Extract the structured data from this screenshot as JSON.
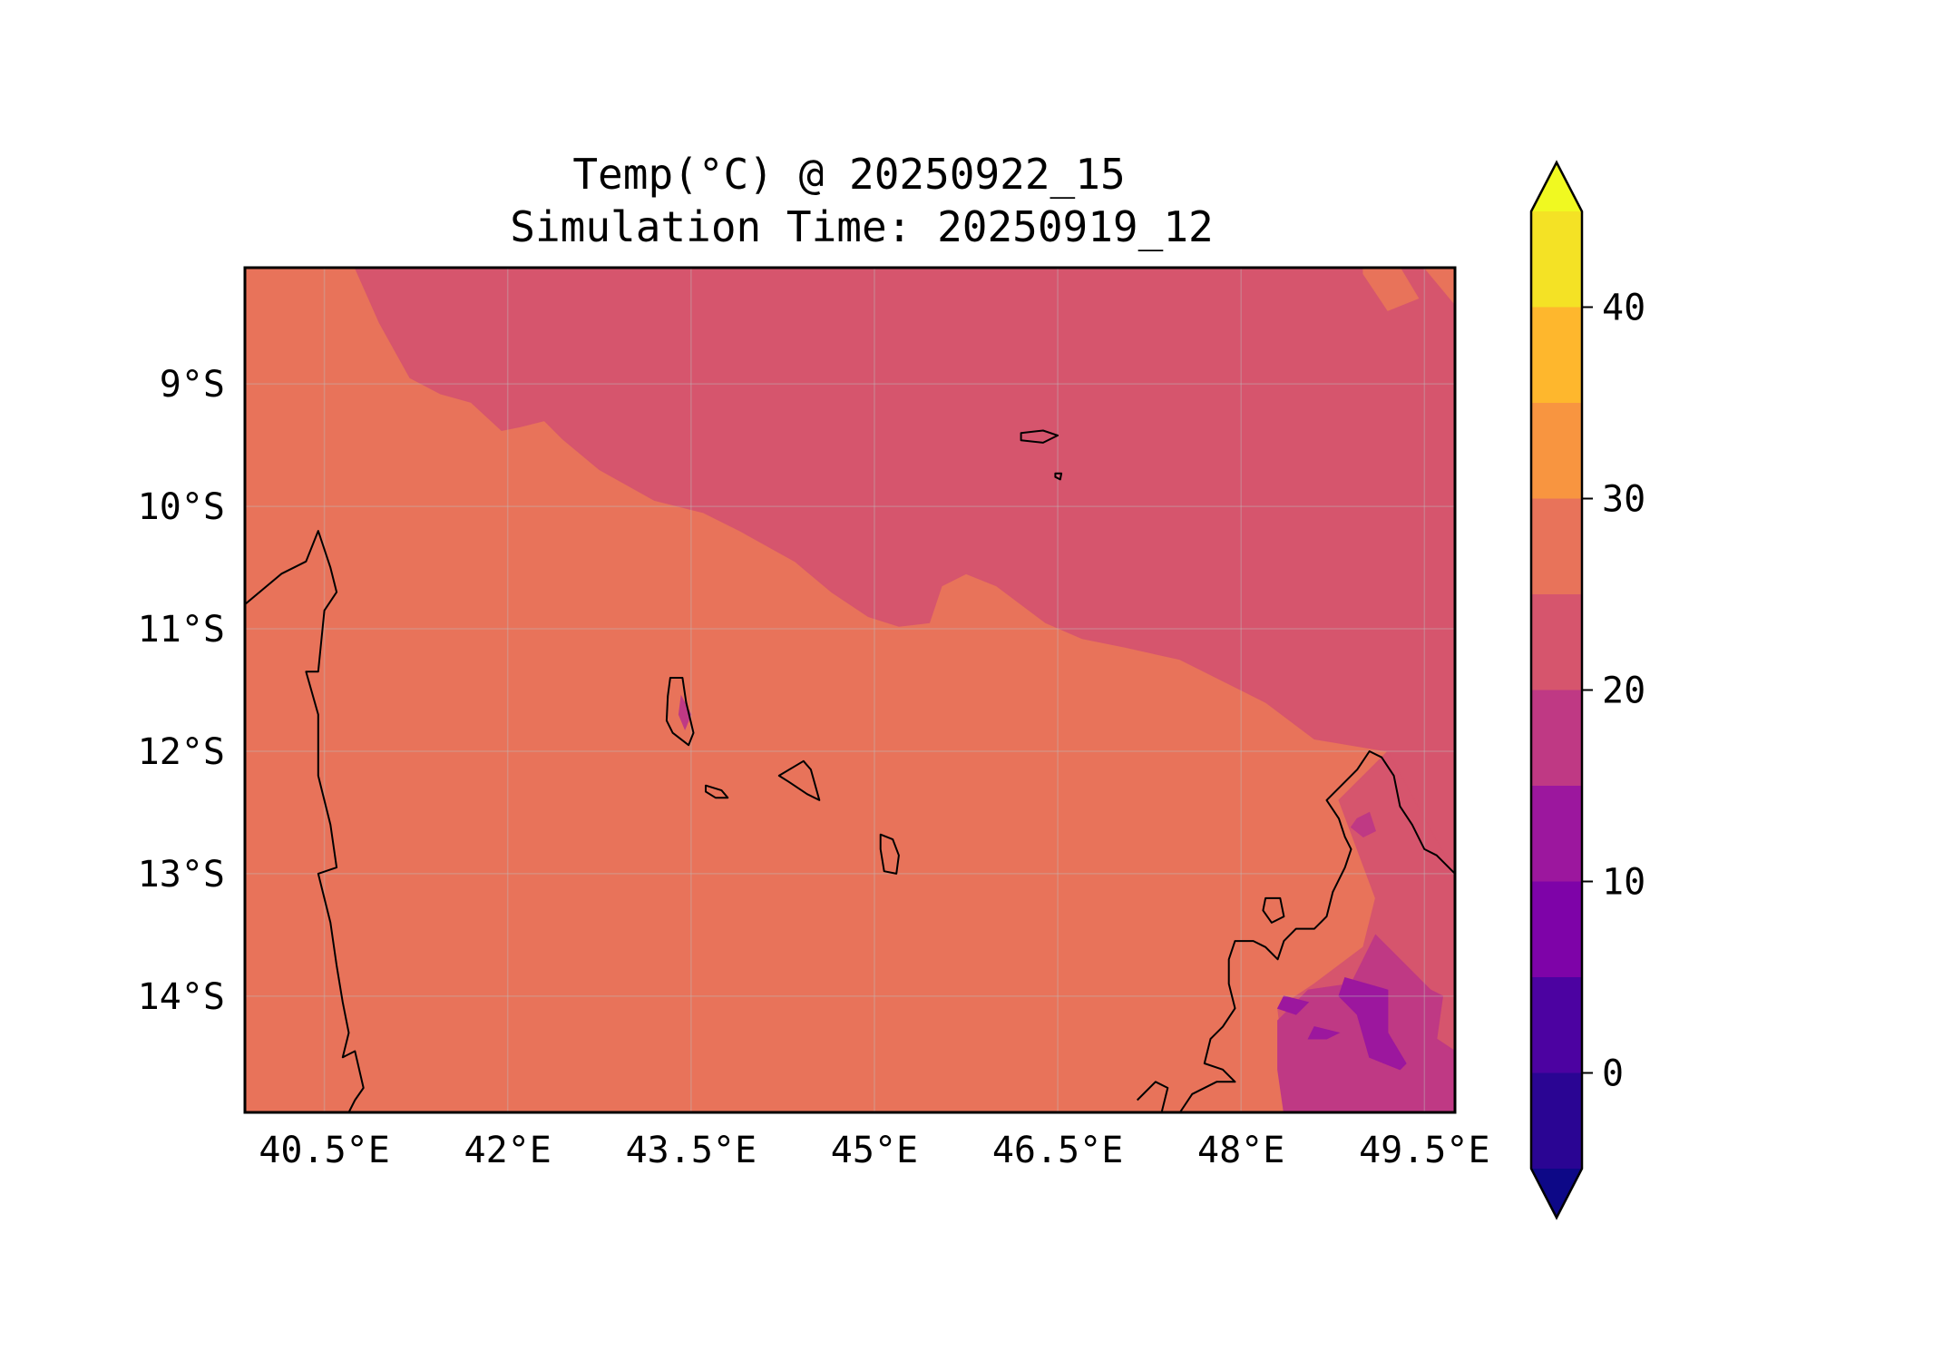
{
  "title_line1": "Temp(°C) @ 20250922_15",
  "title_line2": "Simulation Time: 20250919_12",
  "map": {
    "lon_range": [
      39.85,
      49.75
    ],
    "lat_range": [
      -14.95,
      -8.05
    ],
    "xticks": [
      {
        "value": 40.5,
        "label": "40.5°E"
      },
      {
        "value": 42.0,
        "label": "42°E"
      },
      {
        "value": 43.5,
        "label": "43.5°E"
      },
      {
        "value": 45.0,
        "label": "45°E"
      },
      {
        "value": 46.5,
        "label": "46.5°E"
      },
      {
        "value": 48.0,
        "label": "48°E"
      },
      {
        "value": 49.5,
        "label": "49.5°E"
      }
    ],
    "yticks": [
      {
        "value": -9,
        "label": "9°S"
      },
      {
        "value": -10,
        "label": "10°S"
      },
      {
        "value": -11,
        "label": "11°S"
      },
      {
        "value": -12,
        "label": "12°S"
      },
      {
        "value": -13,
        "label": "13°S"
      },
      {
        "value": -14,
        "label": "14°S"
      }
    ],
    "grid": true,
    "background_level_color": "#e8735a",
    "regions": [
      {
        "name": "ocean-cool-20-25",
        "color": "#d6556d",
        "points": [
          [
            40.75,
            -8.05
          ],
          [
            49.75,
            -8.05
          ],
          [
            49.75,
            -13.0
          ],
          [
            49.3,
            -12.6
          ],
          [
            49.2,
            -12.0
          ],
          [
            48.6,
            -11.9
          ],
          [
            48.2,
            -11.6
          ],
          [
            47.9,
            -11.45
          ],
          [
            47.5,
            -11.25
          ],
          [
            47.05,
            -11.15
          ],
          [
            46.7,
            -11.08
          ],
          [
            46.4,
            -10.95
          ],
          [
            46.0,
            -10.65
          ],
          [
            45.75,
            -10.55
          ],
          [
            45.55,
            -10.65
          ],
          [
            45.45,
            -10.95
          ],
          [
            45.2,
            -10.98
          ],
          [
            44.95,
            -10.9
          ],
          [
            44.65,
            -10.7
          ],
          [
            44.35,
            -10.45
          ],
          [
            43.9,
            -10.2
          ],
          [
            43.6,
            -10.05
          ],
          [
            43.2,
            -9.95
          ],
          [
            42.75,
            -9.7
          ],
          [
            42.45,
            -9.45
          ],
          [
            42.3,
            -9.3
          ],
          [
            42.1,
            -9.35
          ],
          [
            41.95,
            -9.38
          ],
          [
            41.7,
            -9.15
          ],
          [
            41.45,
            -9.08
          ],
          [
            41.2,
            -8.95
          ],
          [
            40.95,
            -8.5
          ],
          [
            40.75,
            -8.05
          ]
        ]
      },
      {
        "name": "madagascar-cool-20-25",
        "color": "#d6556d",
        "points": [
          [
            49.2,
            -12.0
          ],
          [
            49.75,
            -13.0
          ],
          [
            49.75,
            -14.95
          ],
          [
            48.5,
            -14.95
          ],
          [
            48.35,
            -14.5
          ],
          [
            48.3,
            -14.1
          ],
          [
            48.6,
            -13.9
          ],
          [
            49.0,
            -13.6
          ],
          [
            49.1,
            -13.2
          ],
          [
            48.95,
            -12.8
          ],
          [
            48.8,
            -12.4
          ]
        ]
      },
      {
        "name": "madagascar-15-20",
        "color": "#bf3984",
        "points": [
          [
            48.35,
            -14.95
          ],
          [
            48.3,
            -14.6
          ],
          [
            48.3,
            -14.2
          ],
          [
            48.55,
            -13.95
          ],
          [
            48.9,
            -13.9
          ],
          [
            49.1,
            -13.5
          ],
          [
            49.3,
            -13.7
          ],
          [
            49.55,
            -13.95
          ],
          [
            49.65,
            -14.0
          ],
          [
            49.6,
            -14.35
          ],
          [
            49.75,
            -14.45
          ],
          [
            49.75,
            -14.95
          ]
        ]
      },
      {
        "name": "madagascar-10-15",
        "color": "#9c179e",
        "points": [
          [
            48.85,
            -13.85
          ],
          [
            49.2,
            -13.95
          ],
          [
            49.2,
            -14.3
          ],
          [
            49.35,
            -14.55
          ],
          [
            49.3,
            -14.6
          ],
          [
            49.05,
            -14.5
          ],
          [
            48.95,
            -14.15
          ],
          [
            48.8,
            -14.0
          ]
        ]
      },
      {
        "name": "madagascar-10-15-b",
        "color": "#9c179e",
        "points": [
          [
            48.6,
            -14.25
          ],
          [
            48.8,
            -14.3
          ],
          [
            48.7,
            -14.35
          ],
          [
            48.55,
            -14.35
          ]
        ]
      },
      {
        "name": "madagascar-10-15-c",
        "color": "#9c179e",
        "points": [
          [
            48.35,
            -14.0
          ],
          [
            48.55,
            -14.05
          ],
          [
            48.45,
            -14.15
          ],
          [
            48.3,
            -14.1
          ]
        ]
      },
      {
        "name": "madagascar-north-15-20",
        "color": "#bf3984",
        "points": [
          [
            48.95,
            -12.55
          ],
          [
            49.05,
            -12.5
          ],
          [
            49.1,
            -12.65
          ],
          [
            49.0,
            -12.7
          ],
          [
            48.9,
            -12.62
          ]
        ]
      },
      {
        "name": "seychelles-warm-25-30",
        "color": "#e8735a",
        "points": [
          [
            49.0,
            -8.05
          ],
          [
            49.3,
            -8.05
          ],
          [
            49.45,
            -8.3
          ],
          [
            49.2,
            -8.4
          ],
          [
            49.0,
            -8.1
          ]
        ]
      },
      {
        "name": "seychelles-warm-25-30-b",
        "color": "#e8735a",
        "points": [
          [
            49.5,
            -8.05
          ],
          [
            49.75,
            -8.05
          ],
          [
            49.75,
            -8.35
          ]
        ]
      },
      {
        "name": "grande-comore-15-20",
        "color": "#bf3984",
        "points": [
          [
            43.42,
            -11.55
          ],
          [
            43.5,
            -11.7
          ],
          [
            43.45,
            -11.82
          ],
          [
            43.4,
            -11.7
          ]
        ]
      }
    ],
    "land_outlines": [
      {
        "name": "african-coast",
        "points": [
          [
            39.85,
            -10.8
          ],
          [
            40.15,
            -10.55
          ],
          [
            40.35,
            -10.45
          ],
          [
            40.45,
            -10.2
          ],
          [
            40.55,
            -10.5
          ],
          [
            40.6,
            -10.7
          ],
          [
            40.5,
            -10.85
          ],
          [
            40.45,
            -11.35
          ],
          [
            40.35,
            -11.35
          ],
          [
            40.45,
            -11.7
          ],
          [
            40.45,
            -12.2
          ],
          [
            40.55,
            -12.6
          ],
          [
            40.6,
            -12.95
          ],
          [
            40.45,
            -13.0
          ],
          [
            40.55,
            -13.4
          ],
          [
            40.6,
            -13.75
          ],
          [
            40.65,
            -14.05
          ],
          [
            40.7,
            -14.3
          ],
          [
            40.65,
            -14.5
          ],
          [
            40.75,
            -14.45
          ],
          [
            40.82,
            -14.75
          ],
          [
            40.75,
            -14.85
          ],
          [
            40.7,
            -14.95
          ]
        ]
      },
      {
        "name": "grande-comore-outline",
        "closed": true,
        "points": [
          [
            43.33,
            -11.4
          ],
          [
            43.43,
            -11.4
          ],
          [
            43.46,
            -11.6
          ],
          [
            43.52,
            -11.85
          ],
          [
            43.48,
            -11.95
          ],
          [
            43.35,
            -11.85
          ],
          [
            43.3,
            -11.75
          ],
          [
            43.31,
            -11.55
          ]
        ]
      },
      {
        "name": "moheli-outline",
        "closed": true,
        "points": [
          [
            43.62,
            -12.28
          ],
          [
            43.75,
            -12.32
          ],
          [
            43.8,
            -12.38
          ],
          [
            43.7,
            -12.38
          ],
          [
            43.62,
            -12.33
          ]
        ]
      },
      {
        "name": "anjouan-outline",
        "closed": true,
        "points": [
          [
            44.22,
            -12.2
          ],
          [
            44.42,
            -12.08
          ],
          [
            44.48,
            -12.15
          ],
          [
            44.55,
            -12.4
          ],
          [
            44.45,
            -12.35
          ],
          [
            44.3,
            -12.25
          ]
        ]
      },
      {
        "name": "mayotte-outline",
        "closed": true,
        "points": [
          [
            45.05,
            -12.68
          ],
          [
            45.15,
            -12.72
          ],
          [
            45.2,
            -12.85
          ],
          [
            45.18,
            -13.0
          ],
          [
            45.08,
            -12.98
          ],
          [
            45.05,
            -12.8
          ]
        ]
      },
      {
        "name": "aldabra-outline",
        "closed": true,
        "points": [
          [
            46.2,
            -9.4
          ],
          [
            46.38,
            -9.38
          ],
          [
            46.5,
            -9.42
          ],
          [
            46.38,
            -9.48
          ],
          [
            46.2,
            -9.46
          ]
        ]
      },
      {
        "name": "assumption-outline",
        "closed": true,
        "points": [
          [
            46.48,
            -9.73
          ],
          [
            46.53,
            -9.73
          ],
          [
            46.52,
            -9.78
          ],
          [
            46.48,
            -9.76
          ]
        ]
      },
      {
        "name": "madagascar-north-outline",
        "points": [
          [
            49.75,
            -13.0
          ],
          [
            49.6,
            -12.85
          ],
          [
            49.5,
            -12.8
          ],
          [
            49.4,
            -12.6
          ],
          [
            49.3,
            -12.45
          ],
          [
            49.25,
            -12.2
          ],
          [
            49.15,
            -12.05
          ],
          [
            49.05,
            -12.0
          ],
          [
            48.95,
            -12.15
          ],
          [
            48.8,
            -12.3
          ],
          [
            48.7,
            -12.4
          ],
          [
            48.8,
            -12.55
          ],
          [
            48.85,
            -12.7
          ],
          [
            48.9,
            -12.8
          ],
          [
            48.85,
            -12.95
          ],
          [
            48.75,
            -13.15
          ],
          [
            48.7,
            -13.35
          ],
          [
            48.6,
            -13.45
          ],
          [
            48.45,
            -13.45
          ],
          [
            48.35,
            -13.55
          ],
          [
            48.3,
            -13.7
          ],
          [
            48.2,
            -13.6
          ],
          [
            48.1,
            -13.55
          ],
          [
            47.95,
            -13.55
          ],
          [
            47.9,
            -13.7
          ],
          [
            47.9,
            -13.9
          ],
          [
            47.95,
            -14.1
          ],
          [
            47.85,
            -14.25
          ],
          [
            47.75,
            -14.35
          ],
          [
            47.7,
            -14.55
          ],
          [
            47.85,
            -14.6
          ],
          [
            47.95,
            -14.7
          ],
          [
            47.8,
            -14.7
          ],
          [
            47.6,
            -14.8
          ],
          [
            47.5,
            -14.95
          ]
        ]
      },
      {
        "name": "nosy-be-outline",
        "closed": true,
        "points": [
          [
            48.2,
            -13.2
          ],
          [
            48.32,
            -13.2
          ],
          [
            48.35,
            -13.35
          ],
          [
            48.25,
            -13.4
          ],
          [
            48.18,
            -13.3
          ]
        ]
      },
      {
        "name": "madagascar-west-islet",
        "points": [
          [
            47.15,
            -14.85
          ],
          [
            47.3,
            -14.7
          ],
          [
            47.4,
            -14.75
          ],
          [
            47.35,
            -14.95
          ]
        ]
      }
    ]
  },
  "colorbar": {
    "levels": [
      -5,
      0,
      5,
      10,
      15,
      20,
      25,
      30,
      35,
      40,
      45
    ],
    "colors": [
      "#2a0593",
      "#4c02a1",
      "#7e03a8",
      "#9c179e",
      "#bf3984",
      "#d6556d",
      "#e8735a",
      "#f89540",
      "#feb72d",
      "#f4e225"
    ],
    "under_color": "#0d0887",
    "over_color": "#f0f921",
    "ticks": [
      {
        "value": 0,
        "label": "0"
      },
      {
        "value": 10,
        "label": "10"
      },
      {
        "value": 20,
        "label": "20"
      },
      {
        "value": 30,
        "label": "30"
      },
      {
        "value": 40,
        "label": "40"
      }
    ]
  }
}
